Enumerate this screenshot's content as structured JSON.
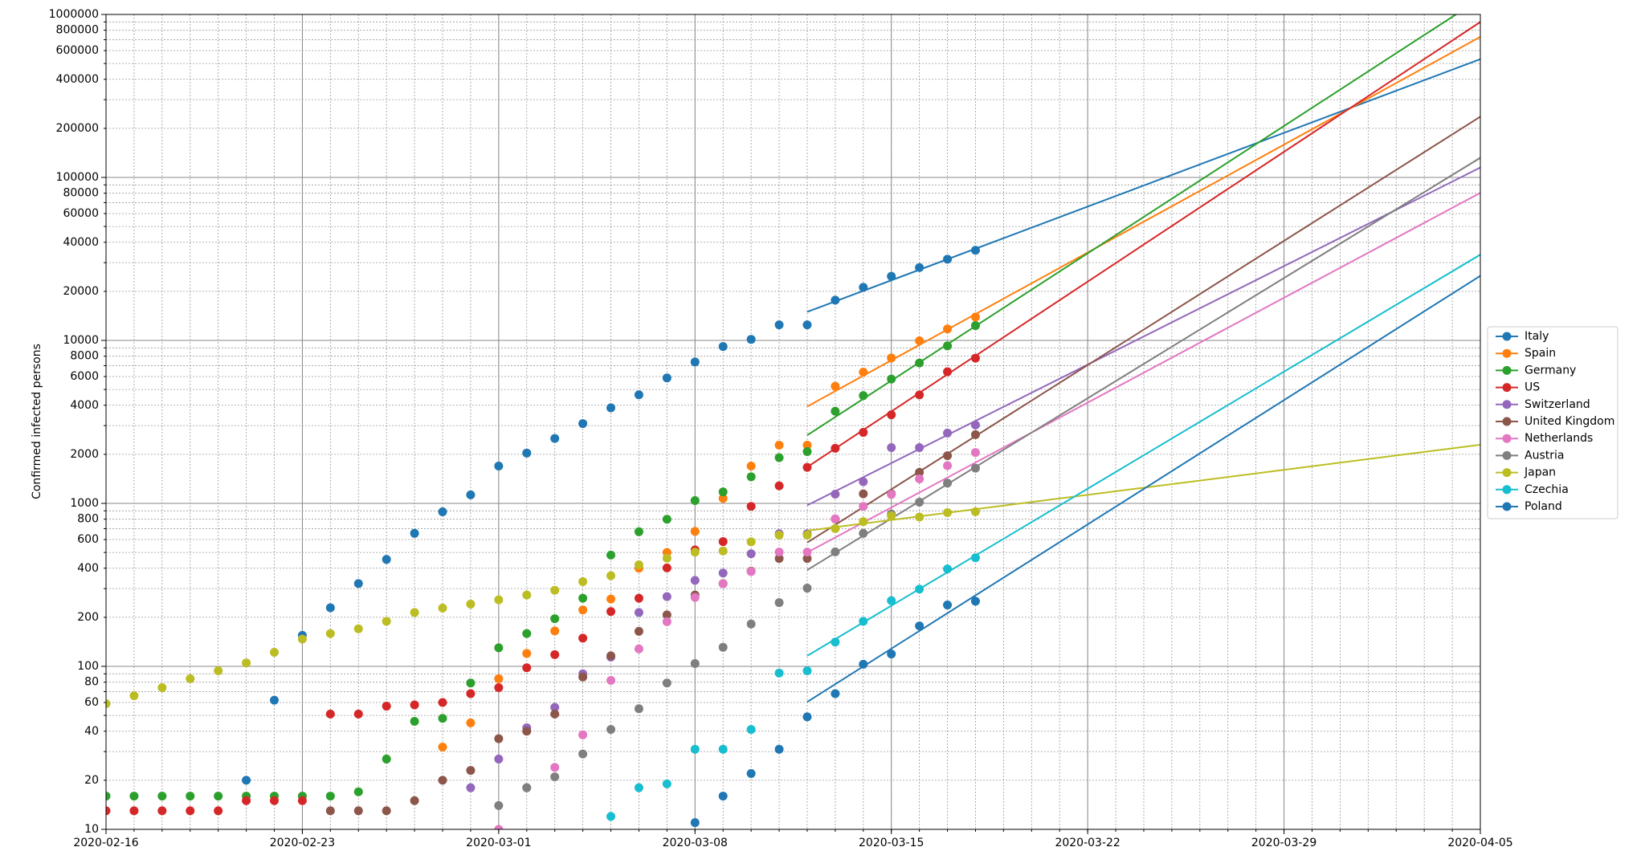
{
  "chart_data": {
    "type": "scatter",
    "ylabel": "Confirmed infected persons",
    "yscale": "log",
    "grid": true,
    "legend": "right",
    "xlim": [
      "2020-02-16",
      "2020-04-05"
    ],
    "xticks": [
      "2020-02-16",
      "2020-02-23",
      "2020-03-01",
      "2020-03-08",
      "2020-03-15",
      "2020-03-22",
      "2020-03-29",
      "2020-04-05"
    ],
    "ylim": [
      10,
      1000000
    ],
    "yticks": [
      10,
      20,
      40,
      60,
      80,
      100,
      200,
      400,
      600,
      800,
      1000,
      2000,
      4000,
      6000,
      8000,
      10000,
      20000,
      40000,
      60000,
      80000,
      100000,
      200000,
      400000,
      600000,
      800000,
      1000000
    ],
    "yminor": [
      30,
      50,
      70,
      90,
      300,
      500,
      700,
      900,
      3000,
      5000,
      7000,
      9000,
      30000,
      50000,
      70000,
      90000,
      300000,
      500000,
      700000,
      900000
    ],
    "x": [
      "2020-02-16",
      "2020-02-17",
      "2020-02-18",
      "2020-02-19",
      "2020-02-20",
      "2020-02-21",
      "2020-02-22",
      "2020-02-23",
      "2020-02-24",
      "2020-02-25",
      "2020-02-26",
      "2020-02-27",
      "2020-02-28",
      "2020-02-29",
      "2020-03-01",
      "2020-03-02",
      "2020-03-03",
      "2020-03-04",
      "2020-03-05",
      "2020-03-06",
      "2020-03-07",
      "2020-03-08",
      "2020-03-09",
      "2020-03-10",
      "2020-03-11",
      "2020-03-12",
      "2020-03-13",
      "2020-03-14",
      "2020-03-15",
      "2020-03-16",
      "2020-03-17",
      "2020-03-18"
    ],
    "series": [
      {
        "name": "Italy",
        "color": "#1f77b4",
        "values": [
          null,
          null,
          null,
          null,
          null,
          20,
          62,
          155,
          229,
          322,
          453,
          655,
          888,
          1128,
          1694,
          2036,
          2502,
          3089,
          3858,
          4636,
          5883,
          7375,
          9172,
          10149,
          12462,
          12462,
          17660,
          21157,
          24747,
          27980,
          31506,
          35713
        ],
        "fit": {
          "x": [
            "2020-03-12",
            "2020-04-05"
          ],
          "values": [
            14960,
            532000
          ]
        }
      },
      {
        "name": "Spain",
        "color": "#ff7f0e",
        "values": [
          null,
          null,
          null,
          null,
          null,
          null,
          null,
          null,
          null,
          null,
          null,
          null,
          32,
          45,
          84,
          120,
          165,
          222,
          259,
          400,
          500,
          673,
          1073,
          1695,
          2277,
          2277,
          5232,
          6391,
          7798,
          9942,
          11748,
          13910
        ],
        "fit": {
          "x": [
            "2020-03-12",
            "2020-04-05"
          ],
          "values": [
            3930,
            729000
          ]
        }
      },
      {
        "name": "Germany",
        "color": "#2ca02c",
        "values": [
          16,
          16,
          16,
          16,
          16,
          16,
          16,
          16,
          16,
          17,
          27,
          46,
          48,
          79,
          130,
          159,
          196,
          262,
          482,
          670,
          799,
          1040,
          1176,
          1457,
          1908,
          2078,
          3675,
          4585,
          5795,
          7272,
          9257,
          12327
        ],
        "fit": {
          "x": [
            "2020-03-12",
            "2020-04-05"
          ],
          "values": [
            2620,
            1250000
          ]
        }
      },
      {
        "name": "US",
        "color": "#d62728",
        "values": [
          13,
          13,
          13,
          13,
          13,
          15,
          15,
          15,
          51,
          51,
          57,
          58,
          60,
          68,
          74,
          98,
          118,
          149,
          217,
          262,
          402,
          518,
          583,
          959,
          1281,
          1663,
          2179,
          2727,
          3499,
          4632,
          6421,
          7786
        ],
        "fit": {
          "x": [
            "2020-03-12",
            "2020-04-05"
          ],
          "values": [
            1670,
            899000
          ]
        }
      },
      {
        "name": "Switzerland",
        "color": "#9467bd",
        "values": [
          null,
          null,
          null,
          null,
          null,
          null,
          null,
          null,
          null,
          null,
          null,
          null,
          null,
          18,
          27,
          42,
          56,
          90,
          114,
          214,
          268,
          337,
          374,
          491,
          652,
          652,
          1139,
          1359,
          2200,
          2200,
          2700,
          3028
        ],
        "fit": {
          "x": [
            "2020-03-12",
            "2020-04-05"
          ],
          "values": [
            973,
            115000
          ]
        }
      },
      {
        "name": "United Kingdom",
        "color": "#8c564b",
        "values": [
          null,
          null,
          null,
          null,
          null,
          null,
          null,
          null,
          13,
          13,
          13,
          15,
          20,
          23,
          36,
          40,
          51,
          86,
          116,
          164,
          207,
          274,
          322,
          384,
          459,
          459,
          802,
          1144,
          1145,
          1551,
          1960,
          2642
        ],
        "fit": {
          "x": [
            "2020-03-12",
            "2020-04-05"
          ],
          "values": [
            575,
            236000
          ]
        }
      },
      {
        "name": "Netherlands",
        "color": "#e377c2",
        "values": [
          null,
          null,
          null,
          null,
          null,
          null,
          null,
          null,
          null,
          null,
          null,
          null,
          null,
          null,
          10,
          18,
          24,
          38,
          82,
          128,
          188,
          265,
          321,
          382,
          503,
          503,
          804,
          959,
          1135,
          1413,
          1705,
          2051
        ],
        "fit": {
          "x": [
            "2020-03-12",
            "2020-04-05"
          ],
          "values": [
            500,
            80400
          ]
        }
      },
      {
        "name": "Austria",
        "color": "#7f7f7f",
        "values": [
          null,
          null,
          null,
          null,
          null,
          null,
          null,
          null,
          null,
          null,
          null,
          null,
          null,
          null,
          14,
          18,
          21,
          29,
          41,
          55,
          79,
          104,
          131,
          182,
          246,
          302,
          504,
          655,
          860,
          1018,
          1332,
          1646
        ],
        "fit": {
          "x": [
            "2020-03-12",
            "2020-04-05"
          ],
          "values": [
            390,
            132000
          ]
        }
      },
      {
        "name": "Japan",
        "color": "#bcbd22",
        "values": [
          59,
          66,
          74,
          84,
          94,
          105,
          122,
          147,
          159,
          170,
          189,
          214,
          228,
          241,
          256,
          274,
          293,
          331,
          360,
          420,
          461,
          502,
          511,
          581,
          639,
          639,
          701,
          773,
          839,
          825,
          878,
          889
        ],
        "fit": {
          "x": [
            "2020-03-12",
            "2020-04-05"
          ],
          "values": [
            680,
            2290
          ]
        }
      },
      {
        "name": "Czechia",
        "color": "#17becf",
        "values": [
          null,
          null,
          null,
          null,
          null,
          null,
          null,
          null,
          null,
          null,
          null,
          null,
          null,
          null,
          null,
          null,
          null,
          null,
          12,
          18,
          19,
          31,
          31,
          41,
          91,
          94,
          141,
          189,
          253,
          298,
          396,
          464
        ],
        "fit": {
          "x": [
            "2020-03-12",
            "2020-04-05"
          ],
          "values": [
            116,
            33600
          ]
        }
      },
      {
        "name": "Poland",
        "color": "#1f77b4",
        "values": [
          null,
          null,
          null,
          null,
          null,
          null,
          null,
          null,
          null,
          null,
          null,
          null,
          null,
          null,
          null,
          null,
          null,
          null,
          null,
          null,
          null,
          11,
          16,
          22,
          31,
          49,
          68,
          103,
          119,
          177,
          238,
          251
        ],
        "fit": {
          "x": [
            "2020-03-12",
            "2020-04-05"
          ],
          "values": [
            60.5,
            24900
          ]
        }
      }
    ]
  }
}
